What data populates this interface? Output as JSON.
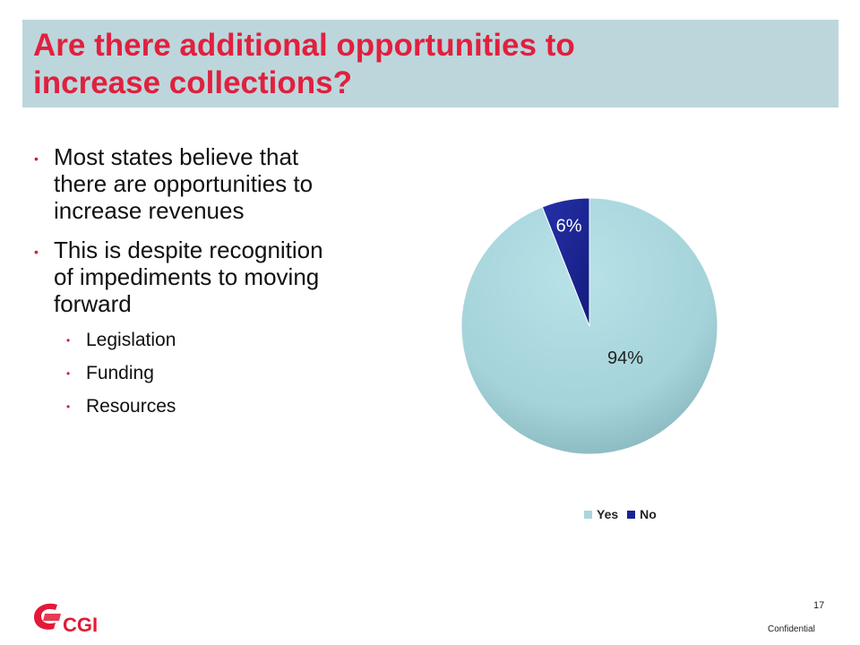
{
  "slide": {
    "title_lines": [
      "Are there additional opportunities to",
      "increase collections?"
    ],
    "bullets": [
      {
        "lines": [
          "Most states believe that",
          "there are opportunities to",
          "increase revenues"
        ]
      },
      {
        "lines": [
          "This is despite recognition",
          "of impediments to moving",
          "forward"
        ]
      }
    ],
    "sub_bullets": [
      "Legislation",
      "Funding",
      "Resources"
    ],
    "page_number": "17",
    "footer": "Confidential",
    "logo_text": "CGI"
  },
  "colors": {
    "title": "#e0203e",
    "title_bar": "#bdd6dc",
    "yes": "#a9d6dd",
    "no": "#1a2396",
    "brand": "#e31937"
  },
  "chart_data": {
    "type": "pie",
    "title": "",
    "categories": [
      "Yes",
      "No"
    ],
    "values": [
      94,
      6
    ],
    "data_labels": [
      "94%",
      "6%"
    ],
    "legend": [
      "Yes",
      "No"
    ],
    "legend_position": "bottom"
  }
}
